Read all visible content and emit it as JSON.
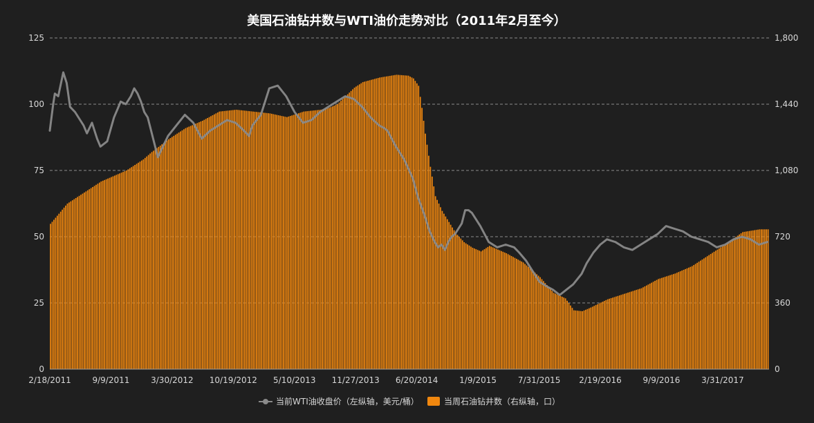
{
  "chart_data": {
    "type": "bar",
    "title": "美国石油钻井数与WTI油价走势对比（2011年2月至今）",
    "x_tick_labels": [
      "2/18/2011",
      "9/9/2011",
      "3/30/2012",
      "10/19/2012",
      "5/10/2013",
      "11/27/2013",
      "6/20/2014",
      "1/9/2015",
      "7/31/2015",
      "2/19/2016",
      "9/9/2016",
      "3/31/2017"
    ],
    "left_axis": {
      "min": 0,
      "max": 125,
      "ticks": [
        0,
        25,
        50,
        75,
        100,
        125
      ],
      "tick_labels": [
        "0",
        "25",
        "50",
        "75",
        "100",
        "125"
      ]
    },
    "right_axis": {
      "min": 0,
      "max": 1800,
      "ticks": [
        0,
        360,
        720,
        1080,
        1440,
        1800
      ],
      "tick_labels": [
        "0",
        "360",
        "720",
        "1,080",
        "1,440",
        "1,800"
      ]
    },
    "grid": "horizontal dashed",
    "legend_position": "bottom",
    "series": [
      {
        "name": "当前WTI油收盘价（左纵轴，美元/桶）",
        "axis": "left",
        "type": "line",
        "color": "#8a8a8a",
        "weeks": [
          0,
          2,
          3,
          5,
          8,
          10,
          12,
          15,
          18,
          20,
          22,
          25,
          28,
          30,
          34,
          38,
          40,
          42,
          45,
          48,
          50,
          52,
          54,
          56,
          58,
          60,
          62,
          64,
          67,
          70,
          75,
          80,
          85,
          90,
          95,
          100,
          105,
          110,
          115,
          118,
          120,
          125,
          130,
          135,
          140,
          145,
          150,
          155,
          160,
          165,
          170,
          175,
          180,
          185,
          190,
          195,
          198,
          200,
          205,
          210,
          215,
          218,
          222,
          225,
          228,
          230,
          232,
          234,
          236,
          238,
          240,
          242,
          244,
          246,
          248,
          250,
          255,
          260,
          265,
          270,
          275,
          278,
          282,
          286,
          290,
          295,
          298,
          302,
          306,
          310,
          315,
          318,
          322,
          326,
          330,
          335,
          340,
          345,
          350,
          355,
          360,
          365,
          370,
          375,
          380,
          385,
          390,
          395,
          400,
          405,
          410,
          415,
          420,
          425
        ],
        "values": [
          90,
          100,
          104,
          103,
          112,
          108,
          99,
          97,
          94,
          92,
          89,
          93,
          87,
          84,
          86,
          95,
          98,
          101,
          100,
          103,
          106,
          104,
          101,
          97,
          95,
          90,
          85,
          80,
          84,
          88,
          92,
          96,
          93,
          87,
          90,
          92,
          94,
          93,
          90,
          88,
          92,
          96,
          106,
          107,
          103,
          97,
          93,
          94,
          97,
          99,
          101,
          103,
          102,
          99,
          95,
          92,
          91,
          90,
          84,
          79,
          72,
          65,
          58,
          52,
          48,
          46,
          47,
          45,
          48,
          50,
          51,
          53,
          55,
          60,
          60,
          59,
          54,
          48,
          46,
          47,
          46,
          44,
          41,
          37,
          33,
          31,
          30,
          28,
          30,
          32,
          36,
          40,
          44,
          47,
          49,
          48,
          46,
          45,
          47,
          49,
          51,
          54,
          53,
          52,
          50,
          49,
          48,
          46,
          47,
          49,
          50,
          49,
          47,
          48
        ]
      },
      {
        "name": "当周石油钻井数（右纵轴，口）",
        "axis": "right",
        "type": "bar",
        "color": "#f0870f",
        "weeks": [
          0,
          10,
          20,
          30,
          40,
          45,
          55,
          60,
          70,
          80,
          90,
          100,
          110,
          120,
          130,
          140,
          150,
          160,
          165,
          170,
          180,
          185,
          195,
          205,
          212,
          215,
          218,
          220,
          222,
          225,
          228,
          232,
          236,
          240,
          245,
          250,
          255,
          260,
          270,
          280,
          290,
          298,
          305,
          310,
          315,
          320,
          330,
          340,
          350,
          360,
          370,
          380,
          390,
          400,
          410,
          420,
          425
        ],
        "values": [
          790,
          900,
          960,
          1020,
          1060,
          1080,
          1140,
          1180,
          1250,
          1310,
          1350,
          1400,
          1410,
          1400,
          1390,
          1370,
          1400,
          1410,
          1420,
          1440,
          1530,
          1560,
          1585,
          1600,
          1595,
          1580,
          1540,
          1420,
          1280,
          1100,
          940,
          860,
          800,
          740,
          690,
          660,
          640,
          670,
          630,
          580,
          500,
          415,
          385,
          320,
          315,
          335,
          380,
          410,
          440,
          490,
          520,
          560,
          620,
          680,
          745,
          760,
          760
        ]
      }
    ]
  }
}
